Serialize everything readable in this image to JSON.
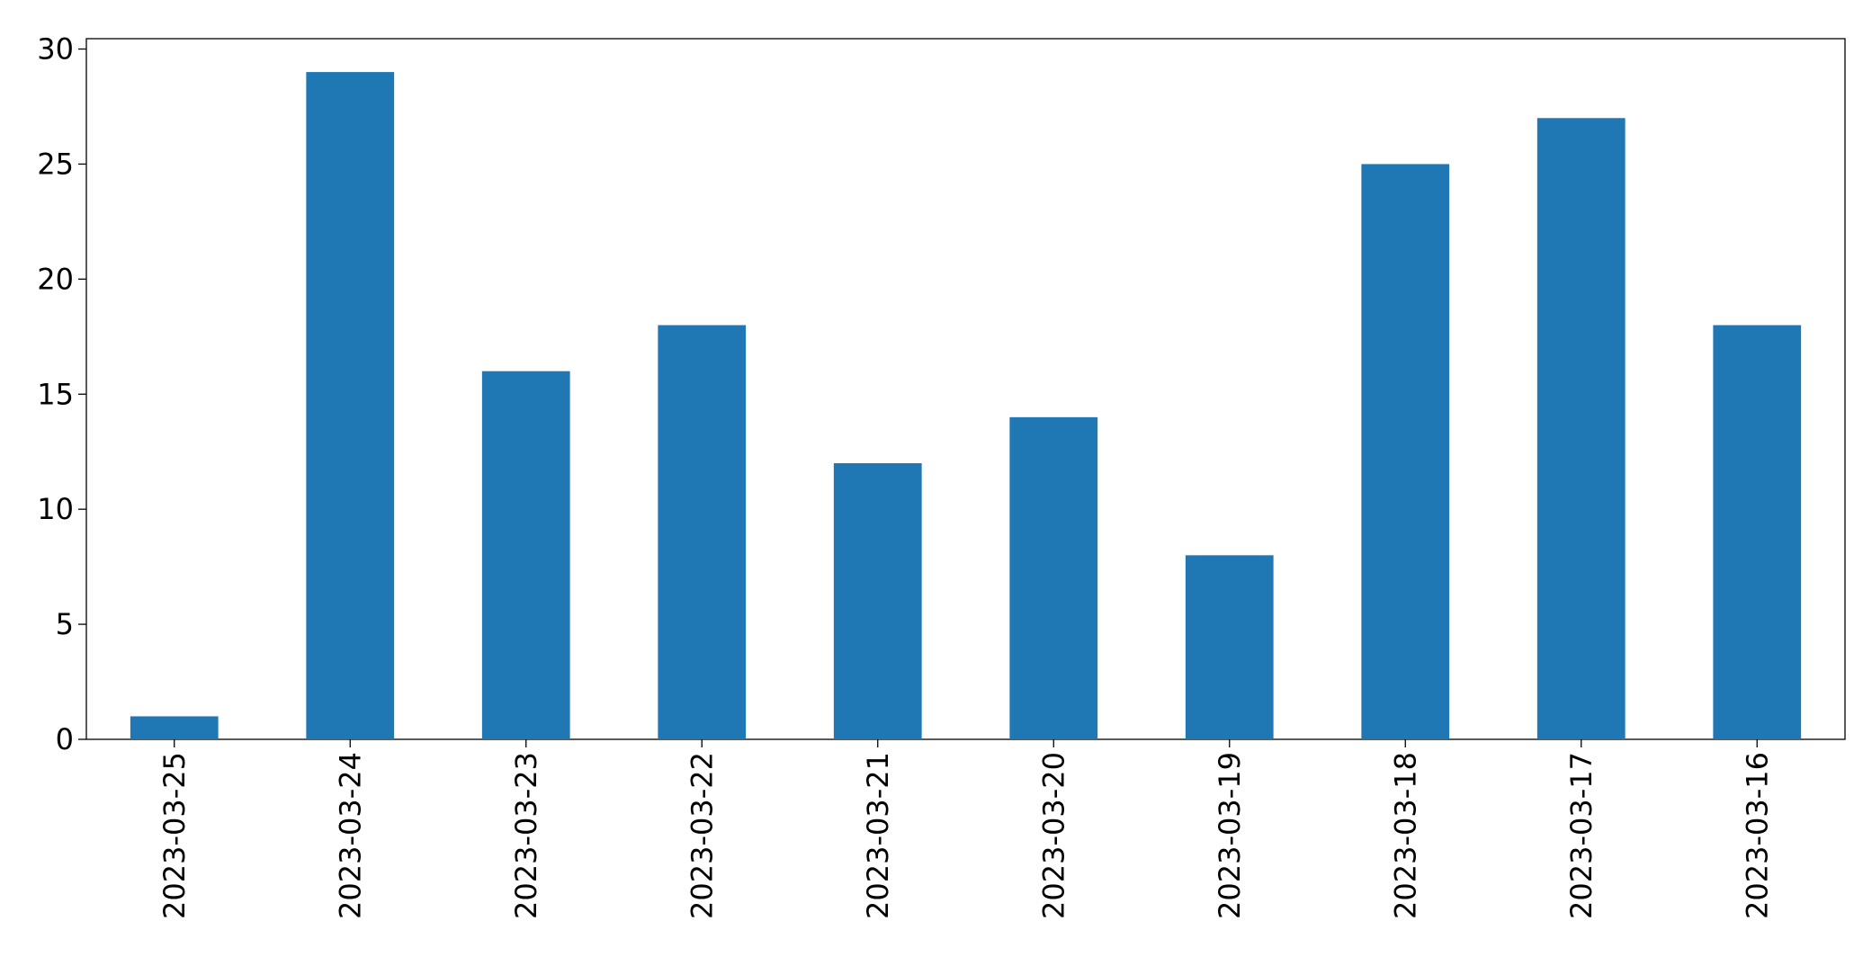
{
  "chart_data": {
    "type": "bar",
    "categories": [
      "2023-03-25",
      "2023-03-24",
      "2023-03-23",
      "2023-03-22",
      "2023-03-21",
      "2023-03-20",
      "2023-03-19",
      "2023-03-18",
      "2023-03-17",
      "2023-03-16"
    ],
    "values": [
      1,
      29,
      16,
      18,
      12,
      14,
      8,
      25,
      27,
      18
    ],
    "color": "#1f77b4",
    "ylim": [
      0,
      30.45
    ],
    "yticks": [
      0,
      5,
      10,
      15,
      20,
      25,
      30
    ],
    "grid": false
  }
}
